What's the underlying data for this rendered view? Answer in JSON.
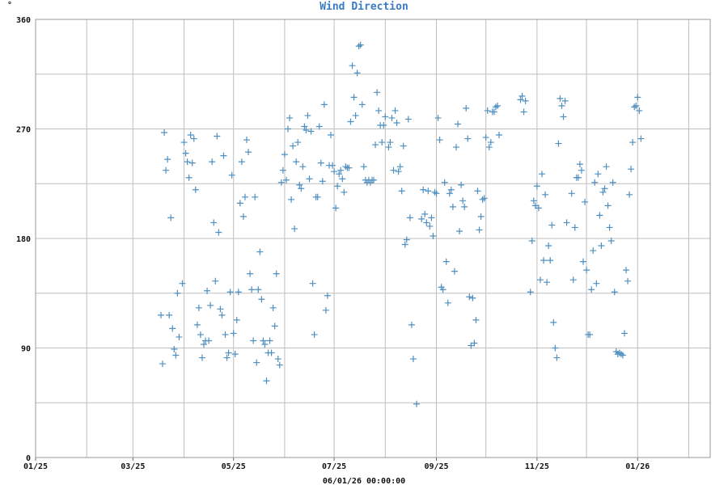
{
  "chart_data": {
    "type": "scatter",
    "title": "Wind Direction",
    "ylabel": "°",
    "xlabel": "06/01/26 00:00:00",
    "y_range": [
      0,
      360
    ],
    "y_ticks": [
      0,
      90,
      180,
      270,
      360
    ],
    "x_range": [
      "2025-01-01",
      "2026-02-14"
    ],
    "x_ticks": [
      {
        "date": "2025-01-01",
        "label": "01/25"
      },
      {
        "date": "2025-03-01",
        "label": "03/25"
      },
      {
        "date": "2025-05-01",
        "label": "05/25"
      },
      {
        "date": "2025-07-01",
        "label": "07/25"
      },
      {
        "date": "2025-09-01",
        "label": "09/25"
      },
      {
        "date": "2025-11-01",
        "label": "11/25"
      },
      {
        "date": "2026-01-01",
        "label": "01/26"
      }
    ],
    "grid": true,
    "marker": "plus",
    "colors": {
      "marker": "#4f8fc0",
      "title": "#3a7cc4",
      "grid": "#bfbfbf"
    },
    "points": [
      [
        "2025-03-18",
        117
      ],
      [
        "2025-03-19",
        77
      ],
      [
        "2025-03-20",
        267
      ],
      [
        "2025-03-21",
        236
      ],
      [
        "2025-03-22",
        245
      ],
      [
        "2025-03-23",
        117
      ],
      [
        "2025-03-24",
        197
      ],
      [
        "2025-03-25",
        106
      ],
      [
        "2025-03-26",
        89
      ],
      [
        "2025-03-27",
        84
      ],
      [
        "2025-03-28",
        135
      ],
      [
        "2025-03-29",
        99
      ],
      [
        "2025-03-31",
        143
      ],
      [
        "2025-04-01",
        259
      ],
      [
        "2025-04-02",
        250
      ],
      [
        "2025-04-03",
        243
      ],
      [
        "2025-04-04",
        230
      ],
      [
        "2025-04-05",
        265
      ],
      [
        "2025-04-06",
        242
      ],
      [
        "2025-04-07",
        262
      ],
      [
        "2025-04-08",
        220
      ],
      [
        "2025-04-09",
        109
      ],
      [
        "2025-04-10",
        123
      ],
      [
        "2025-04-11",
        101
      ],
      [
        "2025-04-12",
        82
      ],
      [
        "2025-04-13",
        93
      ],
      [
        "2025-04-14",
        96
      ],
      [
        "2025-04-15",
        137
      ],
      [
        "2025-04-16",
        96
      ],
      [
        "2025-04-17",
        125
      ],
      [
        "2025-04-18",
        243
      ],
      [
        "2025-04-19",
        193
      ],
      [
        "2025-04-20",
        145
      ],
      [
        "2025-04-21",
        264
      ],
      [
        "2025-04-22",
        185
      ],
      [
        "2025-04-23",
        122
      ],
      [
        "2025-04-24",
        117
      ],
      [
        "2025-04-25",
        248
      ],
      [
        "2025-04-26",
        101
      ],
      [
        "2025-04-27",
        82
      ],
      [
        "2025-04-28",
        86
      ],
      [
        "2025-04-29",
        136
      ],
      [
        "2025-04-30",
        232
      ],
      [
        "2025-05-01",
        102
      ],
      [
        "2025-05-02",
        85
      ],
      [
        "2025-05-03",
        113
      ],
      [
        "2025-05-04",
        136
      ],
      [
        "2025-05-05",
        209
      ],
      [
        "2025-05-06",
        243
      ],
      [
        "2025-05-07",
        198
      ],
      [
        "2025-05-08",
        214
      ],
      [
        "2025-05-09",
        261
      ],
      [
        "2025-05-10",
        251
      ],
      [
        "2025-05-11",
        151
      ],
      [
        "2025-05-12",
        138
      ],
      [
        "2025-05-13",
        96
      ],
      [
        "2025-05-14",
        214
      ],
      [
        "2025-05-15",
        78
      ],
      [
        "2025-05-16",
        138
      ],
      [
        "2025-05-17",
        169
      ],
      [
        "2025-05-18",
        130
      ],
      [
        "2025-05-19",
        96
      ],
      [
        "2025-05-20",
        93
      ],
      [
        "2025-05-21",
        63
      ],
      [
        "2025-05-22",
        86
      ],
      [
        "2025-05-23",
        96
      ],
      [
        "2025-05-24",
        86
      ],
      [
        "2025-05-25",
        123
      ],
      [
        "2025-05-26",
        108
      ],
      [
        "2025-05-27",
        151
      ],
      [
        "2025-05-28",
        81
      ],
      [
        "2025-05-29",
        76
      ],
      [
        "2025-05-30",
        226
      ],
      [
        "2025-05-31",
        236
      ],
      [
        "2025-06-01",
        249
      ],
      [
        "2025-06-02",
        228
      ],
      [
        "2025-06-03",
        270
      ],
      [
        "2025-06-04",
        279
      ],
      [
        "2025-06-05",
        212
      ],
      [
        "2025-06-06",
        256
      ],
      [
        "2025-06-07",
        188
      ],
      [
        "2025-06-08",
        243
      ],
      [
        "2025-06-09",
        259
      ],
      [
        "2025-06-10",
        224
      ],
      [
        "2025-06-11",
        221
      ],
      [
        "2025-06-12",
        239
      ],
      [
        "2025-06-13",
        272
      ],
      [
        "2025-06-14",
        269
      ],
      [
        "2025-06-15",
        281
      ],
      [
        "2025-06-16",
        229
      ],
      [
        "2025-06-17",
        268
      ],
      [
        "2025-06-18",
        143
      ],
      [
        "2025-06-19",
        101
      ],
      [
        "2025-06-20",
        214
      ],
      [
        "2025-06-21",
        214
      ],
      [
        "2025-06-22",
        272
      ],
      [
        "2025-06-23",
        242
      ],
      [
        "2025-06-24",
        227
      ],
      [
        "2025-06-25",
        290
      ],
      [
        "2025-06-26",
        121
      ],
      [
        "2025-06-27",
        133
      ],
      [
        "2025-06-28",
        240
      ],
      [
        "2025-06-29",
        265
      ],
      [
        "2025-06-30",
        240
      ],
      [
        "2025-07-01",
        235
      ],
      [
        "2025-07-02",
        205
      ],
      [
        "2025-07-03",
        223
      ],
      [
        "2025-07-04",
        233
      ],
      [
        "2025-07-05",
        236
      ],
      [
        "2025-07-06",
        229
      ],
      [
        "2025-07-07",
        218
      ],
      [
        "2025-07-08",
        239
      ],
      [
        "2025-07-09",
        238
      ],
      [
        "2025-07-10",
        238
      ],
      [
        "2025-07-11",
        276
      ],
      [
        "2025-07-12",
        322
      ],
      [
        "2025-07-13",
        296
      ],
      [
        "2025-07-14",
        281
      ],
      [
        "2025-07-15",
        316
      ],
      [
        "2025-07-16",
        338
      ],
      [
        "2025-07-17",
        339
      ],
      [
        "2025-07-18",
        290
      ],
      [
        "2025-07-19",
        239
      ],
      [
        "2025-07-20",
        228
      ],
      [
        "2025-07-21",
        226
      ],
      [
        "2025-07-22",
        228
      ],
      [
        "2025-07-23",
        226
      ],
      [
        "2025-07-24",
        228
      ],
      [
        "2025-07-25",
        228
      ],
      [
        "2025-07-26",
        257
      ],
      [
        "2025-07-27",
        300
      ],
      [
        "2025-07-28",
        285
      ],
      [
        "2025-07-29",
        273
      ],
      [
        "2025-07-30",
        259
      ],
      [
        "2025-07-31",
        273
      ],
      [
        "2025-08-01",
        280
      ],
      [
        "2025-08-03",
        255
      ],
      [
        "2025-08-04",
        259
      ],
      [
        "2025-08-05",
        279
      ],
      [
        "2025-08-06",
        236
      ],
      [
        "2025-08-07",
        285
      ],
      [
        "2025-08-08",
        275
      ],
      [
        "2025-08-09",
        235
      ],
      [
        "2025-08-10",
        239
      ],
      [
        "2025-08-11",
        219
      ],
      [
        "2025-08-12",
        256
      ],
      [
        "2025-08-13",
        175
      ],
      [
        "2025-08-14",
        179
      ],
      [
        "2025-08-15",
        278
      ],
      [
        "2025-08-16",
        197
      ],
      [
        "2025-08-17",
        109
      ],
      [
        "2025-08-18",
        81
      ],
      [
        "2025-08-20",
        44
      ],
      [
        "2025-08-23",
        196
      ],
      [
        "2025-08-24",
        220
      ],
      [
        "2025-08-25",
        200
      ],
      [
        "2025-08-26",
        193
      ],
      [
        "2025-08-27",
        219
      ],
      [
        "2025-08-28",
        190
      ],
      [
        "2025-08-29",
        197
      ],
      [
        "2025-08-30",
        182
      ],
      [
        "2025-08-31",
        218
      ],
      [
        "2025-09-01",
        217
      ],
      [
        "2025-09-02",
        279
      ],
      [
        "2025-09-03",
        261
      ],
      [
        "2025-09-04",
        140
      ],
      [
        "2025-09-05",
        138
      ],
      [
        "2025-09-06",
        226
      ],
      [
        "2025-09-07",
        161
      ],
      [
        "2025-09-08",
        127
      ],
      [
        "2025-09-09",
        217
      ],
      [
        "2025-09-10",
        220
      ],
      [
        "2025-09-11",
        206
      ],
      [
        "2025-09-12",
        153
      ],
      [
        "2025-09-13",
        255
      ],
      [
        "2025-09-14",
        274
      ],
      [
        "2025-09-15",
        186
      ],
      [
        "2025-09-16",
        224
      ],
      [
        "2025-09-17",
        211
      ],
      [
        "2025-09-18",
        206
      ],
      [
        "2025-09-19",
        287
      ],
      [
        "2025-09-20",
        262
      ],
      [
        "2025-09-21",
        132
      ],
      [
        "2025-09-22",
        92
      ],
      [
        "2025-09-23",
        131
      ],
      [
        "2025-09-24",
        94
      ],
      [
        "2025-09-25",
        113
      ],
      [
        "2025-09-26",
        219
      ],
      [
        "2025-09-27",
        187
      ],
      [
        "2025-09-28",
        198
      ],
      [
        "2025-09-29",
        212
      ],
      [
        "2025-09-30",
        213
      ],
      [
        "2025-10-01",
        263
      ],
      [
        "2025-10-02",
        285
      ],
      [
        "2025-10-03",
        255
      ],
      [
        "2025-10-04",
        259
      ],
      [
        "2025-10-05",
        284
      ],
      [
        "2025-10-06",
        284
      ],
      [
        "2025-10-07",
        288
      ],
      [
        "2025-10-08",
        289
      ],
      [
        "2025-10-09",
        265
      ],
      [
        "2025-10-22",
        294
      ],
      [
        "2025-10-23",
        297
      ],
      [
        "2025-10-24",
        284
      ],
      [
        "2025-10-25",
        293
      ],
      [
        "2025-10-28",
        136
      ],
      [
        "2025-10-29",
        178
      ],
      [
        "2025-10-30",
        211
      ],
      [
        "2025-10-31",
        207
      ],
      [
        "2025-11-01",
        223
      ],
      [
        "2025-11-02",
        205
      ],
      [
        "2025-11-03",
        146
      ],
      [
        "2025-11-04",
        233
      ],
      [
        "2025-11-05",
        162
      ],
      [
        "2025-11-06",
        216
      ],
      [
        "2025-11-07",
        144
      ],
      [
        "2025-11-08",
        174
      ],
      [
        "2025-11-09",
        162
      ],
      [
        "2025-11-10",
        191
      ],
      [
        "2025-11-11",
        111
      ],
      [
        "2025-11-12",
        90
      ],
      [
        "2025-11-13",
        82
      ],
      [
        "2025-11-14",
        258
      ],
      [
        "2025-11-15",
        295
      ],
      [
        "2025-11-16",
        289
      ],
      [
        "2025-11-17",
        280
      ],
      [
        "2025-11-18",
        293
      ],
      [
        "2025-11-19",
        193
      ],
      [
        "2025-11-22",
        217
      ],
      [
        "2025-11-23",
        146
      ],
      [
        "2025-11-24",
        189
      ],
      [
        "2025-11-25",
        230
      ],
      [
        "2025-11-26",
        230
      ],
      [
        "2025-11-27",
        241
      ],
      [
        "2025-11-28",
        236
      ],
      [
        "2025-11-29",
        161
      ],
      [
        "2025-11-30",
        210
      ],
      [
        "2025-12-01",
        154
      ],
      [
        "2025-12-02",
        101
      ],
      [
        "2025-12-03",
        101
      ],
      [
        "2025-12-04",
        138
      ],
      [
        "2025-12-05",
        170
      ],
      [
        "2025-12-06",
        226
      ],
      [
        "2025-12-07",
        143
      ],
      [
        "2025-12-08",
        233
      ],
      [
        "2025-12-09",
        199
      ],
      [
        "2025-12-10",
        174
      ],
      [
        "2025-12-11",
        218
      ],
      [
        "2025-12-12",
        221
      ],
      [
        "2025-12-13",
        239
      ],
      [
        "2025-12-14",
        207
      ],
      [
        "2025-12-15",
        189
      ],
      [
        "2025-12-16",
        178
      ],
      [
        "2025-12-17",
        226
      ],
      [
        "2025-12-18",
        136
      ],
      [
        "2025-12-19",
        87
      ],
      [
        "2025-12-20",
        85
      ],
      [
        "2025-12-21",
        86
      ],
      [
        "2025-12-22",
        85
      ],
      [
        "2025-12-23",
        84
      ],
      [
        "2025-12-24",
        102
      ],
      [
        "2025-12-25",
        154
      ],
      [
        "2025-12-26",
        145
      ],
      [
        "2025-12-27",
        216
      ],
      [
        "2025-12-28",
        237
      ],
      [
        "2025-12-29",
        259
      ],
      [
        "2025-12-30",
        288
      ],
      [
        "2025-12-31",
        289
      ],
      [
        "2026-01-01",
        296
      ],
      [
        "2026-01-02",
        285
      ],
      [
        "2026-01-03",
        262
      ]
    ]
  }
}
